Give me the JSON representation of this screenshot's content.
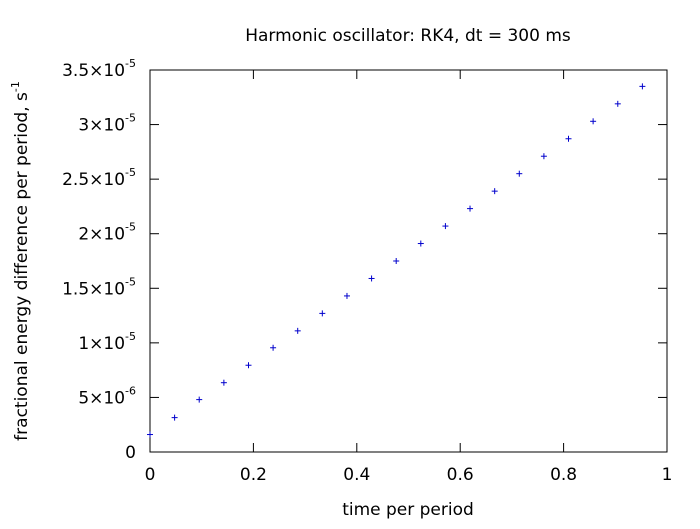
{
  "chart_data": {
    "type": "scatter",
    "title": "Harmonic oscillator: RK4, dt = 300 ms",
    "xlabel": "time per period",
    "ylabel": {
      "text": "fractional energy difference per period, s",
      "superscript": "-1"
    },
    "xlim": [
      0,
      1
    ],
    "ylim": [
      0,
      3.5e-05
    ],
    "grid": false,
    "legend": "none",
    "marker": "+",
    "colors": {
      "points": "#0000cc",
      "axes": "#000000"
    },
    "x_ticks": [
      {
        "value": 0,
        "label": "0"
      },
      {
        "value": 0.2,
        "label": "0.2"
      },
      {
        "value": 0.4,
        "label": "0.4"
      },
      {
        "value": 0.6,
        "label": "0.6"
      },
      {
        "value": 0.8,
        "label": "0.8"
      },
      {
        "value": 1,
        "label": "1"
      }
    ],
    "y_ticks": [
      {
        "value": 0,
        "mantissa": "0",
        "exp": ""
      },
      {
        "value": 5e-06,
        "mantissa": "5×10",
        "exp": "-6"
      },
      {
        "value": 1e-05,
        "mantissa": "1×10",
        "exp": "-5"
      },
      {
        "value": 1.5e-05,
        "mantissa": "1.5×10",
        "exp": "-5"
      },
      {
        "value": 2e-05,
        "mantissa": "2×10",
        "exp": "-5"
      },
      {
        "value": 2.5e-05,
        "mantissa": "2.5×10",
        "exp": "-5"
      },
      {
        "value": 3e-05,
        "mantissa": "3×10",
        "exp": "-5"
      },
      {
        "value": 3.5e-05,
        "mantissa": "3.5×10",
        "exp": "-5"
      }
    ],
    "x": [
      0,
      0.0476,
      0.0952,
      0.1429,
      0.1905,
      0.2381,
      0.2857,
      0.3333,
      0.381,
      0.4286,
      0.4762,
      0.5238,
      0.5714,
      0.619,
      0.6667,
      0.7143,
      0.7619,
      0.8095,
      0.8571,
      0.9048,
      0.9524
    ],
    "y": [
      1.6e-06,
      3.15e-06,
      4.8e-06,
      6.35e-06,
      7.95e-06,
      9.55e-06,
      1.11e-05,
      1.27e-05,
      1.43e-05,
      1.59e-05,
      1.75e-05,
      1.91e-05,
      2.07e-05,
      2.23e-05,
      2.39e-05,
      2.55e-05,
      2.71e-05,
      2.87e-05,
      3.03e-05,
      3.19e-05,
      3.35e-05
    ]
  }
}
